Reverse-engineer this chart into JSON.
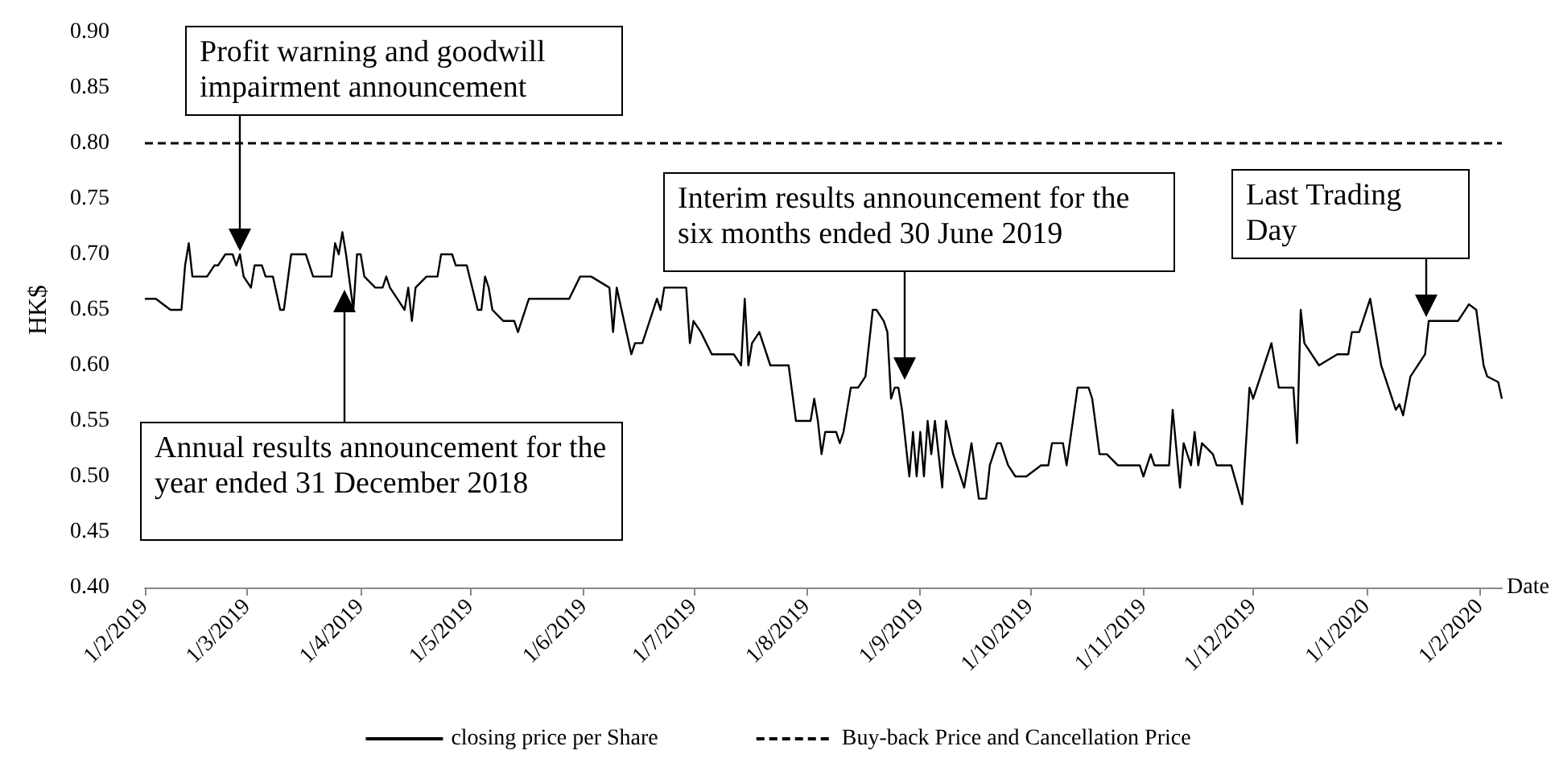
{
  "chart_data": {
    "type": "line",
    "ylabel": "HK$",
    "xlabel": "Date",
    "legend": "bottom",
    "grid": false,
    "marker": "none",
    "x": [
      "2019-02-01",
      "2019-02-04",
      "2019-02-08",
      "2019-02-11",
      "2019-02-12",
      "2019-02-13",
      "2019-02-14",
      "2019-02-18",
      "2019-02-20",
      "2019-02-21",
      "2019-02-23",
      "2019-02-25",
      "2019-02-26",
      "2019-02-27",
      "2019-02-28",
      "2019-03-02",
      "2019-03-03",
      "2019-03-05",
      "2019-03-06",
      "2019-03-08",
      "2019-03-10",
      "2019-03-11",
      "2019-03-13",
      "2019-03-17",
      "2019-03-19",
      "2019-03-24",
      "2019-03-25",
      "2019-03-26",
      "2019-03-27",
      "2019-03-28",
      "2019-03-30",
      "2019-03-31",
      "2019-04-01",
      "2019-04-02",
      "2019-04-05",
      "2019-04-07",
      "2019-04-08",
      "2019-04-09",
      "2019-04-11",
      "2019-04-13",
      "2019-04-14",
      "2019-04-15",
      "2019-04-16",
      "2019-04-19",
      "2019-04-22",
      "2019-04-23",
      "2019-04-26",
      "2019-04-27",
      "2019-04-30",
      "2019-05-03",
      "2019-05-04",
      "2019-05-05",
      "2019-05-06",
      "2019-05-07",
      "2019-05-10",
      "2019-05-13",
      "2019-05-14",
      "2019-05-17",
      "2019-05-28",
      "2019-05-31",
      "2019-06-03",
      "2019-06-08",
      "2019-06-09",
      "2019-06-10",
      "2019-06-14",
      "2019-06-15",
      "2019-06-17",
      "2019-06-18",
      "2019-06-21",
      "2019-06-22",
      "2019-06-23",
      "2019-06-29",
      "2019-06-30",
      "2019-07-01",
      "2019-07-03",
      "2019-07-06",
      "2019-07-12",
      "2019-07-14",
      "2019-07-15",
      "2019-07-16",
      "2019-07-17",
      "2019-07-19",
      "2019-07-22",
      "2019-07-27",
      "2019-07-29",
      "2019-08-02",
      "2019-08-03",
      "2019-08-04",
      "2019-08-05",
      "2019-08-06",
      "2019-08-09",
      "2019-08-10",
      "2019-08-11",
      "2019-08-13",
      "2019-08-15",
      "2019-08-17",
      "2019-08-19",
      "2019-08-20",
      "2019-08-22",
      "2019-08-23",
      "2019-08-24",
      "2019-08-25",
      "2019-08-26",
      "2019-08-27",
      "2019-08-29",
      "2019-08-30",
      "2019-08-31",
      "2019-09-01",
      "2019-09-02",
      "2019-09-03",
      "2019-09-04",
      "2019-09-05",
      "2019-09-07",
      "2019-09-08",
      "2019-09-10",
      "2019-09-13",
      "2019-09-15",
      "2019-09-17",
      "2019-09-19",
      "2019-09-20",
      "2019-09-22",
      "2019-09-23",
      "2019-09-25",
      "2019-09-27",
      "2019-09-30",
      "2019-10-04",
      "2019-10-06",
      "2019-10-07",
      "2019-10-10",
      "2019-10-11",
      "2019-10-14",
      "2019-10-17",
      "2019-10-18",
      "2019-10-20",
      "2019-10-22",
      "2019-10-25",
      "2019-10-31",
      "2019-11-01",
      "2019-11-03",
      "2019-11-04",
      "2019-11-08",
      "2019-11-09",
      "2019-11-11",
      "2019-11-12",
      "2019-11-14",
      "2019-11-15",
      "2019-11-16",
      "2019-11-17",
      "2019-11-20",
      "2019-11-21",
      "2019-11-25",
      "2019-11-28",
      "2019-11-30",
      "2019-12-01",
      "2019-12-04",
      "2019-12-06",
      "2019-12-08",
      "2019-12-12",
      "2019-12-13",
      "2019-12-14",
      "2019-12-15",
      "2019-12-19",
      "2019-12-24",
      "2019-12-27",
      "2019-12-28",
      "2019-12-30",
      "2020-01-02",
      "2020-01-05",
      "2020-01-09",
      "2020-01-10",
      "2020-01-11",
      "2020-01-13",
      "2020-01-17",
      "2020-01-18",
      "2020-01-26",
      "2020-01-29",
      "2020-01-31",
      "2020-02-02",
      "2020-02-03",
      "2020-02-06",
      "2020-02-07"
    ],
    "series": [
      {
        "name": "closing price per Share",
        "color": "#000000",
        "values": [
          0.66,
          0.66,
          0.65,
          0.65,
          0.69,
          0.71,
          0.68,
          0.68,
          0.69,
          0.69,
          0.7,
          0.7,
          0.69,
          0.7,
          0.68,
          0.67,
          0.69,
          0.69,
          0.68,
          0.68,
          0.65,
          0.65,
          0.7,
          0.7,
          0.68,
          0.68,
          0.71,
          0.7,
          0.72,
          0.7,
          0.65,
          0.7,
          0.7,
          0.68,
          0.67,
          0.67,
          0.68,
          0.67,
          0.66,
          0.65,
          0.67,
          0.64,
          0.67,
          0.68,
          0.68,
          0.7,
          0.7,
          0.69,
          0.69,
          0.65,
          0.65,
          0.68,
          0.67,
          0.65,
          0.64,
          0.64,
          0.63,
          0.66,
          0.66,
          0.68,
          0.68,
          0.67,
          0.63,
          0.67,
          0.61,
          0.62,
          0.62,
          0.63,
          0.66,
          0.65,
          0.67,
          0.67,
          0.62,
          0.64,
          0.63,
          0.61,
          0.61,
          0.6,
          0.66,
          0.6,
          0.62,
          0.63,
          0.6,
          0.6,
          0.55,
          0.55,
          0.57,
          0.55,
          0.52,
          0.54,
          0.54,
          0.53,
          0.54,
          0.58,
          0.58,
          0.59,
          0.65,
          0.65,
          0.64,
          0.63,
          0.57,
          0.58,
          0.58,
          0.56,
          0.5,
          0.54,
          0.5,
          0.54,
          0.5,
          0.55,
          0.52,
          0.55,
          0.49,
          0.55,
          0.52,
          0.49,
          0.53,
          0.48,
          0.48,
          0.51,
          0.53,
          0.53,
          0.51,
          0.5,
          0.5,
          0.51,
          0.51,
          0.53,
          0.53,
          0.51,
          0.58,
          0.58,
          0.57,
          0.52,
          0.52,
          0.51,
          0.51,
          0.5,
          0.52,
          0.51,
          0.51,
          0.56,
          0.49,
          0.53,
          0.51,
          0.54,
          0.51,
          0.53,
          0.52,
          0.51,
          0.51,
          0.475,
          0.58,
          0.57,
          0.6,
          0.62,
          0.58,
          0.58,
          0.53,
          0.65,
          0.62,
          0.6,
          0.61,
          0.61,
          0.63,
          0.63,
          0.66,
          0.6,
          0.56,
          0.565,
          0.555,
          0.59,
          0.61,
          0.64,
          0.64,
          0.655,
          0.65,
          0.6,
          0.59,
          0.585,
          0.57
        ]
      }
    ],
    "xlim": [
      "2019-02-01",
      "2020-02-07"
    ],
    "xticks": [
      {
        "value": "2019-02-01",
        "label": "1/2/2019"
      },
      {
        "value": "2019-03-01",
        "label": "1/3/2019"
      },
      {
        "value": "2019-04-01",
        "label": "1/4/2019"
      },
      {
        "value": "2019-05-01",
        "label": "1/5/2019"
      },
      {
        "value": "2019-06-01",
        "label": "1/6/2019"
      },
      {
        "value": "2019-07-01",
        "label": "1/7/2019"
      },
      {
        "value": "2019-08-01",
        "label": "1/8/2019"
      },
      {
        "value": "2019-09-01",
        "label": "1/9/2019"
      },
      {
        "value": "2019-10-01",
        "label": "1/10/2019"
      },
      {
        "value": "2019-11-01",
        "label": "1/11/2019"
      },
      {
        "value": "2019-12-01",
        "label": "1/12/2019"
      },
      {
        "value": "2020-01-01",
        "label": "1/1/2020"
      },
      {
        "value": "2020-02-01",
        "label": "1/2/2020"
      }
    ],
    "ylim": [
      0.4,
      0.9
    ],
    "yticks": [
      {
        "value": 0.4,
        "label": "0.40"
      },
      {
        "value": 0.45,
        "label": "0.45"
      },
      {
        "value": 0.5,
        "label": "0.50"
      },
      {
        "value": 0.55,
        "label": "0.55"
      },
      {
        "value": 0.6,
        "label": "0.60"
      },
      {
        "value": 0.65,
        "label": "0.65"
      },
      {
        "value": 0.7,
        "label": "0.70"
      },
      {
        "value": 0.75,
        "label": "0.75"
      },
      {
        "value": 0.8,
        "label": "0.80"
      },
      {
        "value": 0.85,
        "label": "0.85"
      },
      {
        "value": 0.9,
        "label": "0.90"
      }
    ],
    "ref_lines": [
      {
        "axis": "y",
        "value": 0.8,
        "label": "Buy-back Price and Cancellation Price",
        "color": "#000000",
        "line_style": "dashed"
      }
    ],
    "annotations": [
      "Profit warning and goodwill impairment announcement",
      "Annual results announcement for the year ended  31 December 2018",
      "Interim results announcement for the six months ended 30 June  2019",
      "Last Trading Day"
    ]
  }
}
